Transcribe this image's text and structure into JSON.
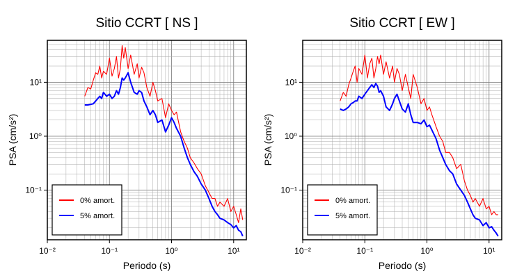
{
  "chart_data": [
    {
      "type": "line",
      "title": "Sitio CCRT [ NS ]",
      "xlabel": "Periodo (s)",
      "ylabel": "PSA (cm/s²)",
      "xscale": "log",
      "yscale": "log",
      "xlim": [
        0.01,
        16
      ],
      "ylim": [
        0.012,
        60
      ],
      "xticks": [
        {
          "value": 0.01,
          "label": "10⁻²"
        },
        {
          "value": 0.1,
          "label": "10⁻¹"
        },
        {
          "value": 1,
          "label": "10⁰"
        },
        {
          "value": 10,
          "label": "10¹"
        }
      ],
      "yticks": [
        {
          "value": 0.1,
          "label": "10⁻¹"
        },
        {
          "value": 1,
          "label": "10⁰"
        },
        {
          "value": 10,
          "label": "10¹"
        }
      ],
      "grid": true,
      "legend_position": "bottom-left",
      "series": [
        {
          "name": "0% amort.",
          "color": "#ff0000",
          "x": [
            0.04,
            0.045,
            0.05,
            0.055,
            0.06,
            0.065,
            0.07,
            0.075,
            0.08,
            0.09,
            0.1,
            0.11,
            0.12,
            0.13,
            0.14,
            0.15,
            0.16,
            0.17,
            0.18,
            0.2,
            0.22,
            0.25,
            0.28,
            0.3,
            0.33,
            0.36,
            0.4,
            0.45,
            0.5,
            0.55,
            0.6,
            0.7,
            0.8,
            0.9,
            1.0,
            1.1,
            1.2,
            1.4,
            1.6,
            1.8,
            2.0,
            2.3,
            2.6,
            3.0,
            3.5,
            4.0,
            4.5,
            5.0,
            5.5,
            6.0,
            7.0,
            8.0,
            9.0,
            10.0,
            11.0,
            12.0,
            13.0,
            14.0
          ],
          "values": [
            5.5,
            8.0,
            7.5,
            11.0,
            15.0,
            14.0,
            20.0,
            12.0,
            16.0,
            14.0,
            28.0,
            13.0,
            18.0,
            30.0,
            12.0,
            18.0,
            48.0,
            28.0,
            44.0,
            18.0,
            32.0,
            14.0,
            22.0,
            12.0,
            19.0,
            15.0,
            8.0,
            5.5,
            10.0,
            7.0,
            4.5,
            5.0,
            2.2,
            4.0,
            3.0,
            2.5,
            2.8,
            1.2,
            0.8,
            0.6,
            0.4,
            0.32,
            0.25,
            0.2,
            0.12,
            0.09,
            0.07,
            0.07,
            0.05,
            0.06,
            0.05,
            0.07,
            0.04,
            0.05,
            0.035,
            0.025,
            0.045,
            0.028
          ]
        },
        {
          "name": "5% amort.",
          "color": "#0000ff",
          "x": [
            0.04,
            0.045,
            0.05,
            0.055,
            0.06,
            0.065,
            0.07,
            0.075,
            0.08,
            0.09,
            0.1,
            0.11,
            0.12,
            0.13,
            0.14,
            0.15,
            0.16,
            0.17,
            0.18,
            0.2,
            0.22,
            0.25,
            0.28,
            0.3,
            0.33,
            0.36,
            0.4,
            0.45,
            0.5,
            0.55,
            0.6,
            0.7,
            0.8,
            0.9,
            1.0,
            1.1,
            1.2,
            1.4,
            1.6,
            1.8,
            2.0,
            2.3,
            2.6,
            3.0,
            3.5,
            4.0,
            4.5,
            5.0,
            5.5,
            6.0,
            7.0,
            8.0,
            9.0,
            10.0,
            11.0,
            12.0,
            13.0,
            14.0
          ],
          "values": [
            3.8,
            3.8,
            3.9,
            4.0,
            4.5,
            5.0,
            5.5,
            5.0,
            6.5,
            5.5,
            6.0,
            5.0,
            5.5,
            7.0,
            6.0,
            8.0,
            12.0,
            11.0,
            12.0,
            15.0,
            10.0,
            6.5,
            6.0,
            7.0,
            6.5,
            4.5,
            3.5,
            2.5,
            3.0,
            2.5,
            1.8,
            2.0,
            1.2,
            1.6,
            2.2,
            1.8,
            1.4,
            1.0,
            0.6,
            0.4,
            0.3,
            0.22,
            0.18,
            0.13,
            0.1,
            0.07,
            0.05,
            0.04,
            0.035,
            0.03,
            0.028,
            0.025,
            0.023,
            0.02,
            0.022,
            0.018,
            0.017,
            0.014
          ]
        }
      ]
    },
    {
      "type": "line",
      "title": "Sitio CCRT [ EW ]",
      "xlabel": "Periodo (s)",
      "ylabel": "PSA (cm/s²)",
      "xscale": "log",
      "yscale": "log",
      "xlim": [
        0.01,
        16
      ],
      "ylim": [
        0.012,
        60
      ],
      "xticks": [
        {
          "value": 0.01,
          "label": "10⁻²"
        },
        {
          "value": 0.1,
          "label": "10⁻¹"
        },
        {
          "value": 1,
          "label": "10⁰"
        },
        {
          "value": 10,
          "label": "10¹"
        }
      ],
      "yticks": [
        {
          "value": 0.1,
          "label": "10⁻¹"
        },
        {
          "value": 1,
          "label": "10⁰"
        },
        {
          "value": 10,
          "label": "10¹"
        }
      ],
      "grid": true,
      "legend_position": "bottom-left",
      "series": [
        {
          "name": "0% amort.",
          "color": "#ff0000",
          "x": [
            0.04,
            0.045,
            0.05,
            0.055,
            0.06,
            0.065,
            0.07,
            0.075,
            0.08,
            0.09,
            0.1,
            0.11,
            0.12,
            0.13,
            0.14,
            0.15,
            0.16,
            0.17,
            0.18,
            0.2,
            0.22,
            0.25,
            0.28,
            0.3,
            0.33,
            0.36,
            0.4,
            0.45,
            0.5,
            0.55,
            0.6,
            0.7,
            0.8,
            0.9,
            1.0,
            1.1,
            1.2,
            1.4,
            1.6,
            1.8,
            2.0,
            2.3,
            2.6,
            3.0,
            3.5,
            4.0,
            4.5,
            5.0,
            5.5,
            6.0,
            7.0,
            8.0,
            9.0,
            10.0,
            11.0,
            12.0,
            13.0,
            14.0
          ],
          "values": [
            4.5,
            6.5,
            5.5,
            9.0,
            12.0,
            16.0,
            20.0,
            10.0,
            18.0,
            14.0,
            32.0,
            12.0,
            22.0,
            28.0,
            12.0,
            18.0,
            30.0,
            22.0,
            32.0,
            14.0,
            24.0,
            12.0,
            20.0,
            10.0,
            18.0,
            14.0,
            7.0,
            14.0,
            8.0,
            5.0,
            14.0,
            8.0,
            4.0,
            5.0,
            3.0,
            3.5,
            2.5,
            1.5,
            1.0,
            0.8,
            0.5,
            0.5,
            0.4,
            0.25,
            0.3,
            0.15,
            0.1,
            0.08,
            0.06,
            0.07,
            0.05,
            0.07,
            0.045,
            0.05,
            0.035,
            0.04,
            0.035,
            0.035
          ]
        },
        {
          "name": "5% amort.",
          "color": "#0000ff",
          "x": [
            0.04,
            0.045,
            0.05,
            0.055,
            0.06,
            0.065,
            0.07,
            0.075,
            0.08,
            0.09,
            0.1,
            0.11,
            0.12,
            0.13,
            0.14,
            0.15,
            0.16,
            0.17,
            0.18,
            0.2,
            0.22,
            0.25,
            0.28,
            0.3,
            0.33,
            0.36,
            0.4,
            0.45,
            0.5,
            0.55,
            0.6,
            0.7,
            0.8,
            0.9,
            1.0,
            1.1,
            1.2,
            1.4,
            1.6,
            1.8,
            2.0,
            2.3,
            2.6,
            3.0,
            3.5,
            4.0,
            4.5,
            5.0,
            5.5,
            6.0,
            7.0,
            8.0,
            9.0,
            10.0,
            11.0,
            12.0,
            13.0,
            14.0
          ],
          "values": [
            3.2,
            3.0,
            3.2,
            3.5,
            4.0,
            4.2,
            4.5,
            4.5,
            5.5,
            5.0,
            6.0,
            7.0,
            8.0,
            9.0,
            8.0,
            9.5,
            8.5,
            6.5,
            7.0,
            5.5,
            3.5,
            3.0,
            4.0,
            5.0,
            6.0,
            4.5,
            3.2,
            2.8,
            4.0,
            2.5,
            1.8,
            1.8,
            1.7,
            2.0,
            1.5,
            1.6,
            1.3,
            0.9,
            0.55,
            0.4,
            0.3,
            0.23,
            0.2,
            0.13,
            0.1,
            0.08,
            0.06,
            0.045,
            0.035,
            0.03,
            0.028,
            0.022,
            0.025,
            0.02,
            0.021,
            0.018,
            0.016,
            0.014
          ]
        }
      ]
    }
  ]
}
